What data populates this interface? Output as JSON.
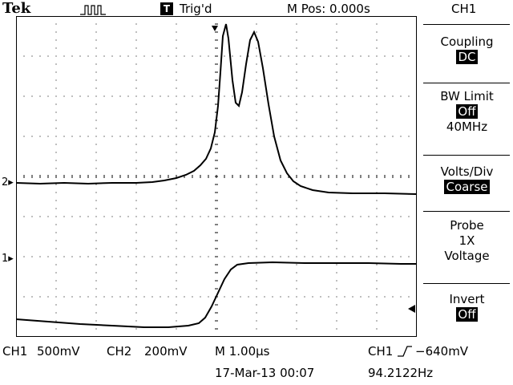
{
  "header": {
    "brand": "Tek",
    "trigger_state": "Trig'd",
    "trigger_badge": "T",
    "position": "M Pos: 0.000s",
    "channel": "CH1"
  },
  "menu": {
    "coupling": {
      "label": "Coupling",
      "value": "DC"
    },
    "bw_limit": {
      "label": "BW Limit",
      "value": "Off",
      "extra": "40MHz"
    },
    "volts_div": {
      "label": "Volts/Div",
      "value": "Coarse"
    },
    "probe": {
      "label": "Probe",
      "value": "1X",
      "extra": "Voltage"
    },
    "invert": {
      "label": "Invert",
      "value": "Off"
    }
  },
  "footer": {
    "ch1_label": "CH1",
    "ch1_scale": "500mV",
    "ch2_label": "CH2",
    "ch2_scale": "200mV",
    "timebase": "M 1.00µs",
    "trigger_source": "CH1",
    "trigger_level": "−640mV",
    "date": "17-Mar-13 00:07",
    "frequency": "94.2122Hz"
  },
  "markers": {
    "ch2": "2",
    "ch1": "1"
  }
}
